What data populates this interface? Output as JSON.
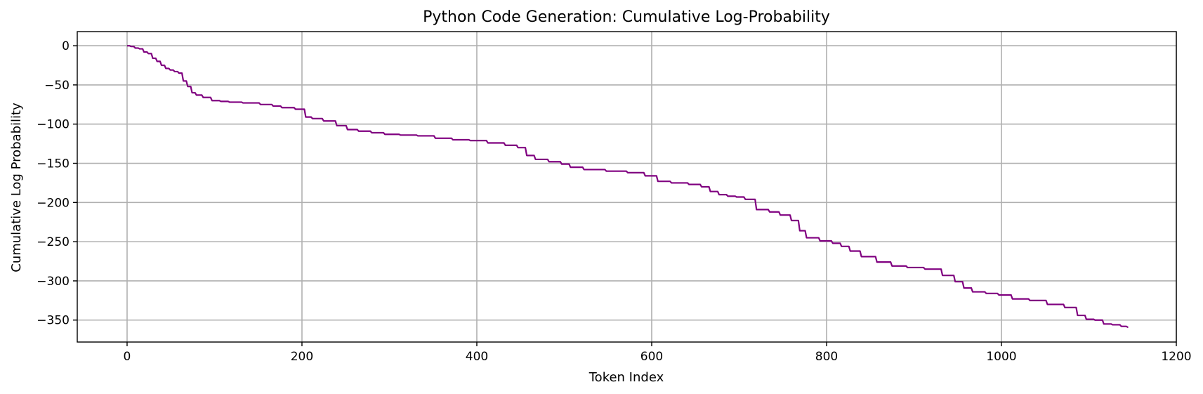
{
  "chart_data": {
    "type": "line",
    "title": "Python Code Generation: Cumulative Log-Probability",
    "xlabel": "Token Index",
    "ylabel": "Cumulative Log Probability",
    "xlim": [
      -57,
      1200
    ],
    "ylim": [
      -378,
      18
    ],
    "xticks": [
      0,
      200,
      400,
      600,
      800,
      1000,
      1200
    ],
    "yticks": [
      0,
      -50,
      -100,
      -150,
      -200,
      -250,
      -300,
      -350
    ],
    "grid": true,
    "line_color": "#800080",
    "series": [
      {
        "x": [
          0,
          5,
          10,
          15,
          20,
          25,
          30,
          35,
          40,
          45,
          50,
          55,
          60,
          65,
          70,
          75,
          80,
          90,
          100,
          110,
          120,
          140,
          160,
          170,
          180,
          200,
          205,
          215,
          230,
          245,
          255,
          270,
          285,
          300,
          320,
          340,
          360,
          380,
          400,
          420,
          440,
          450,
          460,
          470,
          490,
          500,
          510,
          530,
          560,
          580,
          600,
          610,
          630,
          650,
          660,
          670,
          680,
          690,
          700,
          710,
          725,
          740,
          750,
          765,
          770,
          780,
          800,
          810,
          820,
          830,
          845,
          865,
          880,
          900,
          920,
          940,
          950,
          960,
          970,
          990,
          1000,
          1020,
          1040,
          1060,
          1080,
          1090,
          1100,
          1110,
          1120,
          1130,
          1140,
          1145
        ],
        "y": [
          0,
          -1,
          -3,
          -4,
          -8,
          -10,
          -16,
          -20,
          -25,
          -29,
          -31,
          -33,
          -35,
          -45,
          -52,
          -60,
          -63,
          -66,
          -70,
          -71,
          -72,
          -73,
          -75,
          -77,
          -79,
          -81,
          -91,
          -93,
          -96,
          -102,
          -107,
          -109,
          -111,
          -113,
          -114,
          -115,
          -118,
          -120,
          -121,
          -124,
          -127,
          -130,
          -140,
          -145,
          -148,
          -151,
          -155,
          -158,
          -160,
          -162,
          -166,
          -173,
          -175,
          -177,
          -180,
          -186,
          -190,
          -192,
          -193,
          -196,
          -209,
          -212,
          -216,
          -223,
          -236,
          -245,
          -249,
          -252,
          -256,
          -262,
          -269,
          -276,
          -281,
          -283,
          -285,
          -293,
          -301,
          -309,
          -314,
          -316,
          -318,
          -323,
          -325,
          -330,
          -334,
          -344,
          -349,
          -350,
          -355,
          -356,
          -358,
          -359
        ]
      }
    ]
  }
}
